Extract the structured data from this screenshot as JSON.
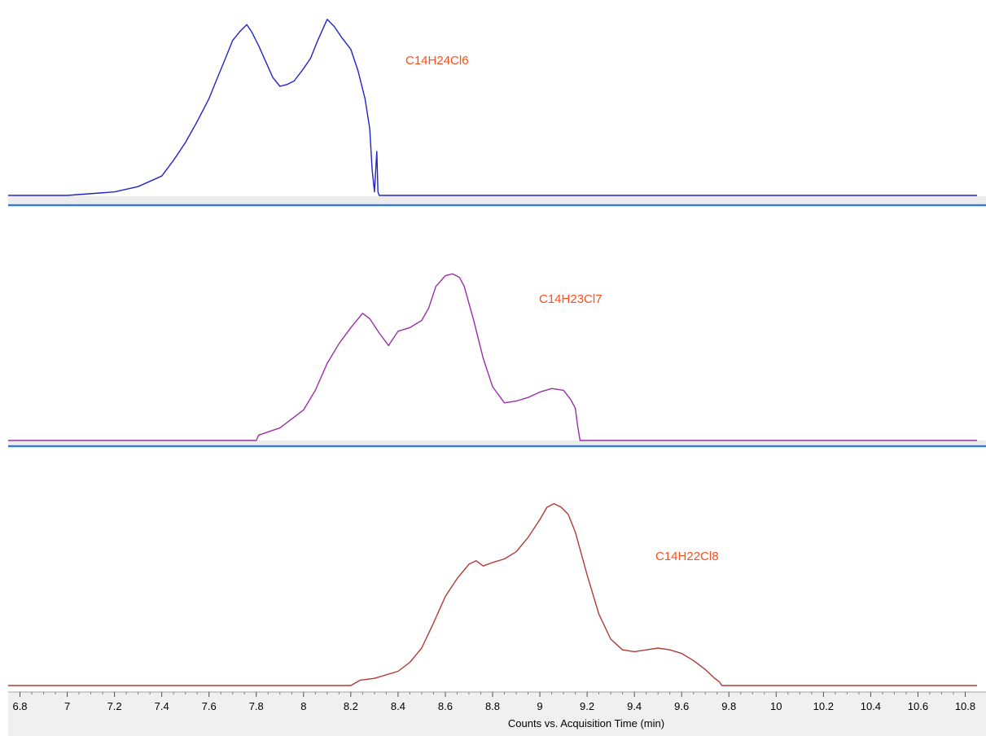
{
  "chart_data": {
    "type": "line",
    "xlabel": "Counts vs. Acquisition Time (min)",
    "xlim": [
      6.75,
      10.85
    ],
    "x_ticks": [
      "6.8",
      "7",
      "7.2",
      "7.4",
      "7.6",
      "7.8",
      "8",
      "8.2",
      "8.4",
      "8.6",
      "8.8",
      "9",
      "9.2",
      "9.4",
      "9.6",
      "9.8",
      "10",
      "10.2",
      "10.4",
      "10.6",
      "10.8"
    ],
    "x_tick_values": [
      6.8,
      7.0,
      7.2,
      7.4,
      7.6,
      7.8,
      8.0,
      8.2,
      8.4,
      8.6,
      8.8,
      9.0,
      9.2,
      9.4,
      9.6,
      9.8,
      10.0,
      10.2,
      10.4,
      10.6,
      10.8
    ],
    "grid": false,
    "panels": [
      {
        "label": "C14H24Cl6",
        "color": "#2323c8",
        "label_color": "#ff4d1a",
        "x": [
          6.75,
          7.0,
          7.2,
          7.3,
          7.4,
          7.45,
          7.5,
          7.55,
          7.6,
          7.63,
          7.67,
          7.7,
          7.73,
          7.76,
          7.78,
          7.81,
          7.84,
          7.87,
          7.9,
          7.93,
          7.96,
          8.0,
          8.03,
          8.06,
          8.1,
          8.13,
          8.16,
          8.2,
          8.23,
          8.26,
          8.28,
          8.29,
          8.3,
          8.31,
          8.315,
          8.32,
          8.33,
          8.5,
          9.0,
          10.85
        ],
        "y": [
          0.0,
          0.0,
          0.02,
          0.05,
          0.11,
          0.2,
          0.3,
          0.42,
          0.55,
          0.65,
          0.78,
          0.88,
          0.93,
          0.97,
          0.93,
          0.85,
          0.76,
          0.67,
          0.62,
          0.63,
          0.65,
          0.72,
          0.78,
          0.88,
          1.0,
          0.96,
          0.9,
          0.83,
          0.71,
          0.55,
          0.38,
          0.15,
          0.02,
          0.25,
          0.02,
          0.0,
          0.0,
          0.0,
          0.0,
          0.0
        ],
        "ylim": [
          0,
          1.05
        ]
      },
      {
        "label": "C14H23Cl7",
        "color": "#9a2ea8",
        "label_color": "#ff4d1a",
        "x": [
          6.75,
          7.8,
          7.81,
          7.9,
          8.0,
          8.05,
          8.1,
          8.15,
          8.2,
          8.25,
          8.28,
          8.32,
          8.36,
          8.4,
          8.45,
          8.5,
          8.53,
          8.56,
          8.6,
          8.63,
          8.66,
          8.68,
          8.72,
          8.76,
          8.8,
          8.85,
          8.9,
          8.95,
          9.0,
          9.05,
          9.1,
          9.13,
          9.15,
          9.16,
          9.17,
          9.5,
          10.0,
          10.85
        ],
        "y": [
          0.0,
          0.0,
          0.03,
          0.07,
          0.17,
          0.28,
          0.43,
          0.54,
          0.63,
          0.71,
          0.68,
          0.6,
          0.53,
          0.61,
          0.63,
          0.67,
          0.74,
          0.86,
          0.92,
          0.93,
          0.91,
          0.86,
          0.67,
          0.46,
          0.3,
          0.21,
          0.22,
          0.24,
          0.27,
          0.29,
          0.28,
          0.23,
          0.18,
          0.08,
          0.0,
          0.0,
          0.0,
          0.0
        ],
        "ylim": [
          0,
          1.05
        ]
      },
      {
        "label": "C14H22Cl8",
        "color": "#b03a3a",
        "label_color": "#ff4d1a",
        "x": [
          6.75,
          8.2,
          8.24,
          8.3,
          8.4,
          8.45,
          8.5,
          8.55,
          8.6,
          8.65,
          8.7,
          8.73,
          8.76,
          8.8,
          8.85,
          8.9,
          8.95,
          9.0,
          9.03,
          9.06,
          9.09,
          9.12,
          9.15,
          9.2,
          9.25,
          9.3,
          9.35,
          9.4,
          9.45,
          9.5,
          9.55,
          9.6,
          9.65,
          9.7,
          9.74,
          9.76,
          9.77,
          10.0,
          10.85
        ],
        "y": [
          0.0,
          0.0,
          0.03,
          0.04,
          0.08,
          0.13,
          0.21,
          0.35,
          0.5,
          0.6,
          0.68,
          0.7,
          0.67,
          0.69,
          0.71,
          0.75,
          0.83,
          0.93,
          1.0,
          1.02,
          1.0,
          0.96,
          0.86,
          0.62,
          0.4,
          0.26,
          0.2,
          0.19,
          0.2,
          0.21,
          0.2,
          0.18,
          0.14,
          0.09,
          0.04,
          0.02,
          0.0,
          0.0,
          0.0
        ],
        "ylim": [
          0,
          1.05
        ]
      }
    ]
  }
}
